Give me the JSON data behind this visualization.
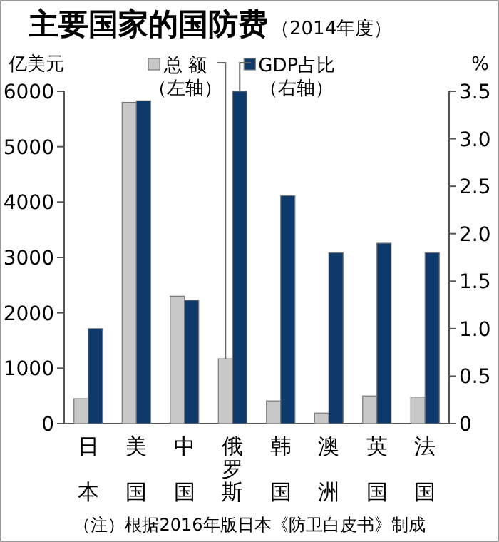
{
  "chart_data": {
    "type": "bar",
    "title": "主要国家的国防费",
    "subtitle": "（2014年度）",
    "ylabel": "亿美元",
    "y2label": "%",
    "categories": [
      "日本",
      "美国",
      "中国",
      "俄罗斯",
      "韩国",
      "澳洲",
      "英国",
      "法国"
    ],
    "series": [
      {
        "name": "总 额（左轴）",
        "color": "#c8c8c8",
        "values": [
          450,
          5800,
          2300,
          1170,
          410,
          190,
          500,
          480
        ]
      },
      {
        "name": "GDP占比（右轴）",
        "color": "#0d3a6b",
        "axis": "y2",
        "values": [
          1.0,
          3.4,
          1.3,
          3.5,
          2.4,
          1.8,
          1.9,
          1.8
        ]
      }
    ],
    "ylim": [
      0,
      6000
    ],
    "yticks": [
      0,
      1000,
      2000,
      3000,
      4000,
      5000,
      6000
    ],
    "y2lim": [
      0,
      3.5
    ],
    "y2ticks": [
      0,
      {
        "value": 0.5,
        "label": "0.5"
      },
      {
        "value": 1,
        "label": "1.0"
      },
      {
        "value": 1.5,
        "label": "1.5"
      },
      {
        "value": 2,
        "label": "2.0"
      },
      {
        "value": 2.5,
        "label": "2.5"
      },
      {
        "value": 3,
        "label": "3.0"
      },
      {
        "value": 3.5,
        "label": "3.5"
      }
    ],
    "legend": "top",
    "grid": false,
    "annotations": [
      "（注）根据2016年版日本《防卫白皮书》制成"
    ]
  }
}
